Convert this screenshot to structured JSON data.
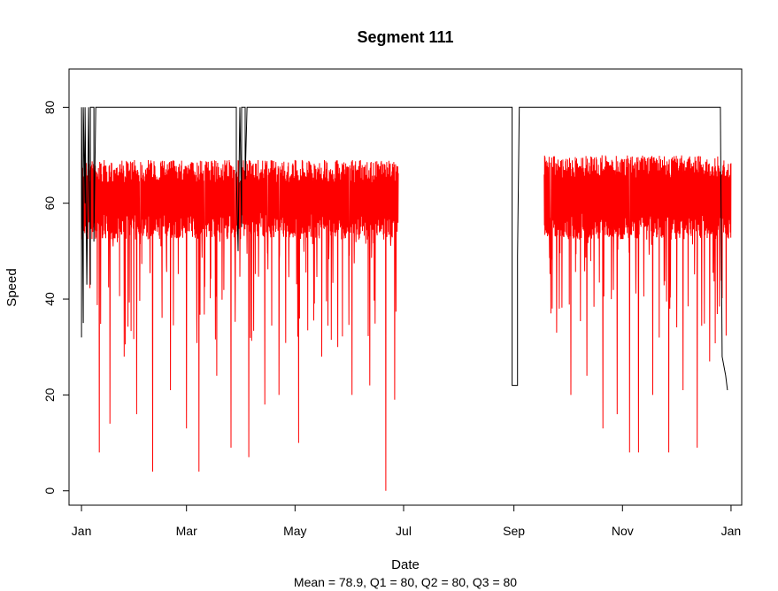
{
  "colors": {
    "limit_series": "#000000",
    "speed_series": "#ff0000",
    "axes": "#000000",
    "background": "#ffffff"
  },
  "chart_data": {
    "type": "line",
    "title": "Segment 111",
    "xlabel": "Date",
    "ylabel": "Speed",
    "summary": "Mean = 78.9,  Q1 = 80,  Q2 = 80,  Q3 = 80",
    "xlim": [
      "2014-12-25",
      "2016-01-07"
    ],
    "ylim": [
      -3,
      88
    ],
    "x_ticks": [
      {
        "date": "2015-01-01",
        "label": "Jan"
      },
      {
        "date": "2015-03-01",
        "label": "Mar"
      },
      {
        "date": "2015-05-01",
        "label": "May"
      },
      {
        "date": "2015-07-01",
        "label": "Jul"
      },
      {
        "date": "2015-09-01",
        "label": "Sep"
      },
      {
        "date": "2015-11-01",
        "label": "Nov"
      },
      {
        "date": "2016-01-01",
        "label": "Jan"
      }
    ],
    "y_ticks": [
      0,
      20,
      40,
      60,
      80
    ],
    "grid": false,
    "legend": "none",
    "series": [
      {
        "color": "#000000",
        "points": [
          [
            "2015-01-01",
            32
          ],
          [
            "2015-01-01",
            80
          ],
          [
            "2015-01-02",
            35
          ],
          [
            "2015-01-02",
            80
          ],
          [
            "2015-01-03",
            60
          ],
          [
            "2015-01-03",
            80
          ],
          [
            "2015-01-04",
            43
          ],
          [
            "2015-01-05",
            80
          ],
          [
            "2015-01-06",
            43
          ],
          [
            "2015-01-06",
            80
          ],
          [
            "2015-01-08",
            80
          ],
          [
            "2015-01-08",
            52
          ],
          [
            "2015-01-09",
            80
          ],
          [
            "2015-03-29",
            80
          ],
          [
            "2015-03-29",
            66
          ],
          [
            "2015-03-30",
            50
          ],
          [
            "2015-03-31",
            80
          ],
          [
            "2015-04-01",
            55
          ],
          [
            "2015-04-01",
            80
          ],
          [
            "2015-04-03",
            80
          ],
          [
            "2015-04-03",
            65
          ],
          [
            "2015-04-04",
            80
          ],
          [
            "2015-08-31",
            80
          ],
          [
            "2015-08-31",
            22
          ],
          [
            "2015-09-03",
            22
          ],
          [
            "2015-09-03",
            49
          ],
          [
            "2015-09-04",
            80
          ],
          [
            "2015-12-26",
            80
          ],
          [
            "2015-12-27",
            28
          ],
          [
            "2015-12-29",
            24
          ],
          [
            "2015-12-30",
            21
          ]
        ]
      },
      {
        "color": "#ff0000",
        "segments": [
          {
            "start": "2015-01-01",
            "end": "2015-06-28",
            "base": 63,
            "high": 69,
            "low": 30,
            "spikes": [
              [
                "2015-01-11",
                8
              ],
              [
                "2015-01-17",
                14
              ],
              [
                "2015-01-25",
                28
              ],
              [
                "2015-02-01",
                16
              ],
              [
                "2015-02-10",
                4
              ],
              [
                "2015-02-20",
                21
              ],
              [
                "2015-03-01",
                13
              ],
              [
                "2015-03-08",
                4
              ],
              [
                "2015-03-18",
                24
              ],
              [
                "2015-03-26",
                9
              ],
              [
                "2015-04-05",
                7
              ],
              [
                "2015-04-14",
                18
              ],
              [
                "2015-04-22",
                20
              ],
              [
                "2015-05-03",
                10
              ],
              [
                "2015-05-16",
                28
              ],
              [
                "2015-05-25",
                30
              ],
              [
                "2015-06-02",
                20
              ],
              [
                "2015-06-12",
                22
              ],
              [
                "2015-06-21",
                0
              ],
              [
                "2015-06-26",
                19
              ]
            ]
          },
          {
            "start": "2015-09-18",
            "end": "2016-01-01",
            "base": 63,
            "high": 70,
            "low": 30,
            "spikes": [
              [
                "2015-09-25",
                33
              ],
              [
                "2015-10-03",
                20
              ],
              [
                "2015-10-12",
                24
              ],
              [
                "2015-10-21",
                13
              ],
              [
                "2015-10-29",
                16
              ],
              [
                "2015-11-05",
                8
              ],
              [
                "2015-11-10",
                8
              ],
              [
                "2015-11-18",
                20
              ],
              [
                "2015-11-27",
                8
              ],
              [
                "2015-12-05",
                21
              ],
              [
                "2015-12-13",
                9
              ],
              [
                "2015-12-20",
                27
              ]
            ]
          }
        ]
      }
    ]
  }
}
